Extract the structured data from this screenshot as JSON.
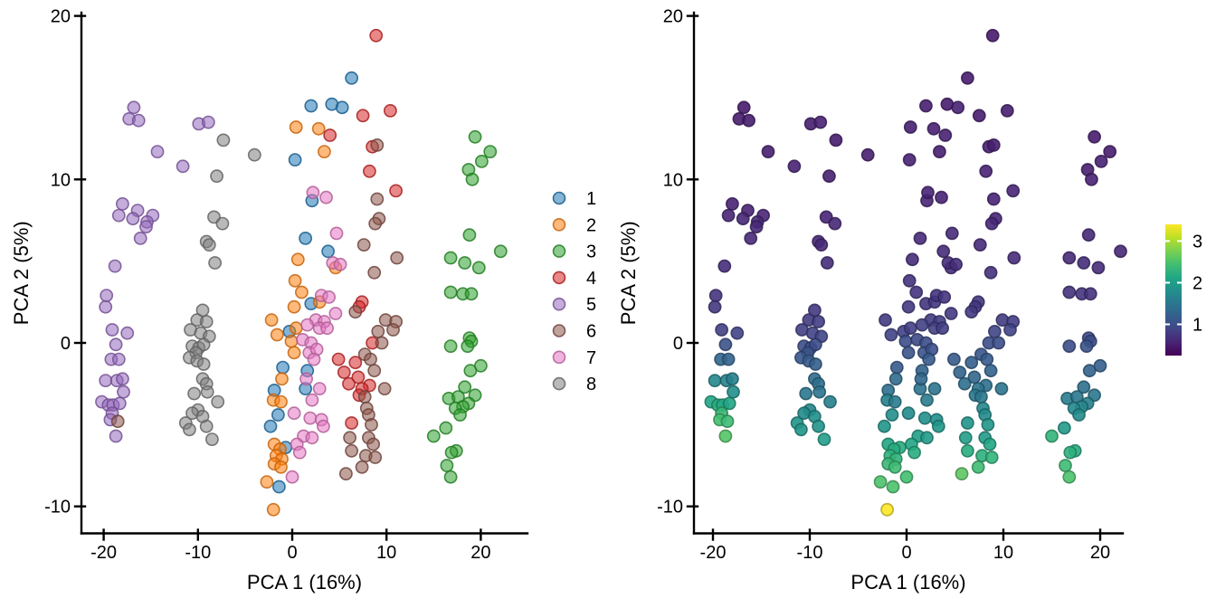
{
  "figure": {
    "background": "#ffffff"
  },
  "plots": [
    {
      "id": "left",
      "xlabel": "PCA 1 (16%)",
      "ylabel": "PCA 2 (5%)",
      "x_ticks": [
        -20,
        -10,
        0,
        10,
        20
      ],
      "y_ticks": [
        20,
        10,
        0,
        -10
      ],
      "color_by": "category"
    },
    {
      "id": "right",
      "xlabel": "PCA 1 (16%)",
      "ylabel": "PCA 2 (5%)",
      "x_ticks": [
        -20,
        -10,
        0,
        10,
        20
      ],
      "y_ticks": [
        20,
        10,
        0,
        -10
      ],
      "color_by": "value"
    }
  ],
  "legend": {
    "entries": [
      {
        "label": "1",
        "color": "#1f77b4"
      },
      {
        "label": "2",
        "color": "#ff7f0e"
      },
      {
        "label": "3",
        "color": "#2ca02c"
      },
      {
        "label": "4",
        "color": "#d62728"
      },
      {
        "label": "5",
        "color": "#9467bd"
      },
      {
        "label": "6",
        "color": "#8c564b"
      },
      {
        "label": "7",
        "color": "#e377c2"
      },
      {
        "label": "8",
        "color": "#7f7f7f"
      }
    ]
  },
  "colorbar": {
    "ticks": [
      1,
      2,
      3
    ],
    "vmin": 0.25,
    "vmax": 3.4
  },
  "chart_data": {
    "type": "scatter",
    "title": "",
    "xlabel": "PCA 1 (16%)",
    "ylabel": "PCA 2 (5%)",
    "xlim": [
      -22,
      23
    ],
    "ylim": [
      -11.6,
      20.4
    ],
    "grid": false,
    "columns": [
      "pca1",
      "pca2",
      "category",
      "value"
    ],
    "points": [
      [
        0.3,
        11.2,
        1,
        0.55
      ],
      [
        6.3,
        16.2,
        1,
        0.5
      ],
      [
        2.0,
        14.5,
        1,
        0.52
      ],
      [
        4.2,
        14.6,
        1,
        0.5
      ],
      [
        5.3,
        14.4,
        1,
        0.55
      ],
      [
        2.1,
        8.7,
        1,
        0.58
      ],
      [
        1.4,
        6.4,
        1,
        0.62
      ],
      [
        3.8,
        5.6,
        1,
        0.64
      ],
      [
        2.0,
        2.4,
        1,
        0.74
      ],
      [
        -0.3,
        0.7,
        1,
        0.86
      ],
      [
        -1.0,
        -1.5,
        1,
        1.15
      ],
      [
        1.6,
        -1.7,
        1,
        1.25
      ],
      [
        -1.9,
        -2.9,
        1,
        1.4
      ],
      [
        1.4,
        -2.8,
        1,
        1.45
      ],
      [
        -1.5,
        -4.4,
        1,
        1.8
      ],
      [
        -2.3,
        -5.1,
        1,
        1.9
      ],
      [
        -0.7,
        -6.4,
        1,
        2.2
      ],
      [
        -1.4,
        -8.8,
        1,
        2.5
      ],
      [
        0.4,
        13.2,
        2,
        0.52
      ],
      [
        2.8,
        13.1,
        2,
        0.54
      ],
      [
        3.4,
        11.7,
        2,
        0.52
      ],
      [
        4.6,
        4.6,
        2,
        0.66
      ],
      [
        0.6,
        5.1,
        2,
        0.64
      ],
      [
        0.3,
        3.8,
        2,
        0.7
      ],
      [
        1.0,
        3.1,
        2,
        0.72
      ],
      [
        2.9,
        2.5,
        2,
        0.75
      ],
      [
        0.2,
        2.2,
        2,
        0.78
      ],
      [
        0.4,
        0.9,
        2,
        0.84
      ],
      [
        -2.2,
        1.4,
        2,
        0.8
      ],
      [
        -1.6,
        0.5,
        2,
        0.88
      ],
      [
        -0.1,
        0.1,
        2,
        1.0
      ],
      [
        0.2,
        -0.6,
        2,
        1.05
      ],
      [
        -1.1,
        -2.2,
        2,
        1.35
      ],
      [
        -2.0,
        -3.5,
        2,
        1.6
      ],
      [
        -1.2,
        -3.6,
        2,
        1.55
      ],
      [
        -1.9,
        -6.2,
        2,
        2.1
      ],
      [
        -1.3,
        -6.5,
        2,
        2.2
      ],
      [
        -1.7,
        -6.9,
        2,
        2.25
      ],
      [
        -1.1,
        -7.1,
        2,
        2.3
      ],
      [
        -1.9,
        -7.4,
        2,
        2.35
      ],
      [
        -1.2,
        -7.6,
        2,
        2.4
      ],
      [
        -2.7,
        -8.5,
        2,
        2.5
      ],
      [
        -2.0,
        -10.2,
        2,
        3.4
      ],
      [
        19.4,
        12.6,
        3,
        0.5
      ],
      [
        21.0,
        11.7,
        3,
        0.5
      ],
      [
        20.1,
        11.1,
        3,
        0.54
      ],
      [
        18.7,
        10.6,
        3,
        0.52
      ],
      [
        19.1,
        10.0,
        3,
        0.55
      ],
      [
        18.8,
        6.6,
        3,
        0.6
      ],
      [
        16.8,
        5.2,
        3,
        0.62
      ],
      [
        22.1,
        5.6,
        3,
        0.6
      ],
      [
        18.3,
        4.9,
        3,
        0.66
      ],
      [
        19.8,
        4.6,
        3,
        0.64
      ],
      [
        16.8,
        3.1,
        3,
        0.7
      ],
      [
        18.1,
        3.0,
        3,
        0.72
      ],
      [
        19.0,
        3.0,
        3,
        0.7
      ],
      [
        16.8,
        -0.2,
        3,
        1.0
      ],
      [
        18.8,
        0.3,
        3,
        0.95
      ],
      [
        19.0,
        0.1,
        3,
        1.0
      ],
      [
        18.6,
        -0.2,
        3,
        1.05
      ],
      [
        20.0,
        -1.4,
        3,
        1.2
      ],
      [
        18.9,
        -1.7,
        3,
        1.25
      ],
      [
        18.3,
        -2.7,
        3,
        1.4
      ],
      [
        19.4,
        -3.2,
        3,
        1.5
      ],
      [
        16.6,
        -3.4,
        3,
        1.55
      ],
      [
        17.6,
        -3.3,
        3,
        1.5
      ],
      [
        18.7,
        -3.7,
        3,
        1.6
      ],
      [
        18.1,
        -3.9,
        3,
        1.65
      ],
      [
        17.3,
        -4.0,
        3,
        1.7
      ],
      [
        17.8,
        -4.4,
        3,
        1.75
      ],
      [
        16.3,
        -5.2,
        3,
        1.95
      ],
      [
        15.0,
        -5.7,
        3,
        2.3
      ],
      [
        17.4,
        -6.6,
        3,
        2.2
      ],
      [
        16.9,
        -6.7,
        3,
        2.25
      ],
      [
        16.4,
        -7.5,
        3,
        2.4
      ],
      [
        16.8,
        -8.2,
        3,
        2.5
      ],
      [
        8.9,
        18.8,
        4,
        0.48
      ],
      [
        10.4,
        14.2,
        4,
        0.52
      ],
      [
        7.5,
        13.9,
        4,
        0.5
      ],
      [
        8.5,
        12.0,
        4,
        0.52
      ],
      [
        4.0,
        12.7,
        4,
        0.54
      ],
      [
        8.2,
        10.5,
        4,
        0.56
      ],
      [
        11.0,
        9.3,
        4,
        0.58
      ],
      [
        7.4,
        2.5,
        4,
        0.74
      ],
      [
        7.1,
        2.2,
        4,
        0.76
      ],
      [
        8.5,
        0.0,
        4,
        1.0
      ],
      [
        5.5,
        -1.8,
        4,
        1.25
      ],
      [
        4.9,
        -1.0,
        4,
        1.15
      ],
      [
        6.7,
        -1.2,
        4,
        1.2
      ],
      [
        6.0,
        -2.5,
        4,
        1.4
      ],
      [
        7.0,
        -2.1,
        4,
        1.3
      ],
      [
        8.2,
        -2.6,
        4,
        1.4
      ],
      [
        7.4,
        -2.8,
        4,
        1.45
      ],
      [
        7.1,
        -3.2,
        4,
        1.5
      ],
      [
        6.3,
        -4.9,
        4,
        1.85
      ],
      [
        -16.8,
        14.4,
        5,
        0.48
      ],
      [
        -17.3,
        13.7,
        5,
        0.5
      ],
      [
        -16.3,
        13.6,
        5,
        0.5
      ],
      [
        -9.9,
        13.4,
        5,
        0.52
      ],
      [
        -8.9,
        13.5,
        5,
        0.54
      ],
      [
        -14.3,
        11.7,
        5,
        0.52
      ],
      [
        -11.6,
        10.8,
        5,
        0.55
      ],
      [
        -18.0,
        8.5,
        5,
        0.56
      ],
      [
        -18.4,
        7.8,
        5,
        0.58
      ],
      [
        -16.4,
        8.1,
        5,
        0.56
      ],
      [
        -16.9,
        7.6,
        5,
        0.6
      ],
      [
        -14.8,
        7.8,
        5,
        0.58
      ],
      [
        -15.4,
        7.4,
        5,
        0.6
      ],
      [
        -15.5,
        7.1,
        5,
        0.62
      ],
      [
        -16.1,
        6.4,
        5,
        0.62
      ],
      [
        -18.8,
        4.7,
        5,
        0.66
      ],
      [
        -19.7,
        2.9,
        5,
        0.72
      ],
      [
        -19.8,
        2.2,
        5,
        0.76
      ],
      [
        -19.1,
        0.8,
        5,
        0.85
      ],
      [
        -17.5,
        0.6,
        5,
        0.88
      ],
      [
        -18.7,
        -0.1,
        5,
        1.05
      ],
      [
        -19.2,
        -1.0,
        5,
        1.3
      ],
      [
        -18.4,
        -1.0,
        5,
        1.25
      ],
      [
        -19.8,
        -2.3,
        5,
        1.7
      ],
      [
        -18.6,
        -2.3,
        5,
        1.65
      ],
      [
        -18.0,
        -2.2,
        5,
        1.6
      ],
      [
        -17.9,
        -3.0,
        5,
        1.8
      ],
      [
        -20.2,
        -3.6,
        5,
        2.1
      ],
      [
        -19.5,
        -3.8,
        5,
        2.2
      ],
      [
        -19.0,
        -3.8,
        5,
        2.15
      ],
      [
        -18.3,
        -3.7,
        5,
        2.1
      ],
      [
        -19.1,
        -4.3,
        5,
        2.35
      ],
      [
        -19.3,
        -4.7,
        5,
        2.45
      ],
      [
        -18.7,
        -5.7,
        5,
        2.55
      ],
      [
        9.0,
        12.1,
        6,
        0.52
      ],
      [
        9.0,
        8.8,
        6,
        0.56
      ],
      [
        9.2,
        7.6,
        6,
        0.58
      ],
      [
        8.8,
        7.3,
        6,
        0.6
      ],
      [
        7.6,
        6.0,
        6,
        0.62
      ],
      [
        11.1,
        5.2,
        6,
        0.64
      ],
      [
        8.7,
        4.3,
        6,
        0.68
      ],
      [
        6.7,
        1.9,
        6,
        0.78
      ],
      [
        9.9,
        1.4,
        6,
        0.8
      ],
      [
        11.0,
        1.3,
        6,
        0.82
      ],
      [
        9.1,
        0.7,
        6,
        0.9
      ],
      [
        10.7,
        0.8,
        6,
        0.88
      ],
      [
        9.5,
        0.0,
        6,
        1.0
      ],
      [
        7.7,
        -0.7,
        6,
        1.1
      ],
      [
        8.3,
        -1.0,
        6,
        1.15
      ],
      [
        8.7,
        -1.7,
        6,
        1.25
      ],
      [
        9.8,
        -2.8,
        6,
        1.45
      ],
      [
        7.7,
        -3.3,
        6,
        1.5
      ],
      [
        7.9,
        -4.0,
        6,
        1.7
      ],
      [
        8.1,
        -4.4,
        6,
        1.75
      ],
      [
        8.4,
        -5.0,
        6,
        1.9
      ],
      [
        6.1,
        -5.8,
        6,
        2.0
      ],
      [
        8.1,
        -5.8,
        6,
        1.95
      ],
      [
        8.6,
        -6.2,
        6,
        2.1
      ],
      [
        6.3,
        -6.6,
        6,
        2.2
      ],
      [
        7.8,
        -6.9,
        6,
        2.25
      ],
      [
        8.8,
        -7.0,
        6,
        2.3
      ],
      [
        7.4,
        -7.6,
        6,
        2.4
      ],
      [
        5.7,
        -8.0,
        6,
        2.6
      ],
      [
        -18.5,
        -4.8,
        6,
        2.4
      ],
      [
        2.2,
        9.2,
        7,
        0.56
      ],
      [
        3.6,
        8.9,
        7,
        0.56
      ],
      [
        4.7,
        6.7,
        7,
        0.62
      ],
      [
        4.3,
        4.9,
        7,
        0.66
      ],
      [
        5.1,
        4.8,
        7,
        0.66
      ],
      [
        3.1,
        2.9,
        7,
        0.72
      ],
      [
        3.9,
        2.8,
        7,
        0.72
      ],
      [
        4.6,
        1.8,
        7,
        0.78
      ],
      [
        2.5,
        1.4,
        7,
        0.8
      ],
      [
        3.4,
        1.3,
        7,
        0.82
      ],
      [
        1.6,
        1.1,
        7,
        0.85
      ],
      [
        2.9,
        0.9,
        7,
        0.85
      ],
      [
        3.7,
        0.9,
        7,
        0.83
      ],
      [
        1.1,
        0.2,
        7,
        0.95
      ],
      [
        2.0,
        0.0,
        7,
        1.0
      ],
      [
        1.8,
        -0.6,
        7,
        1.05
      ],
      [
        2.6,
        -0.4,
        7,
        1.02
      ],
      [
        2.3,
        -1.0,
        7,
        1.15
      ],
      [
        1.5,
        -2.2,
        7,
        1.3
      ],
      [
        2.9,
        -2.8,
        7,
        1.45
      ],
      [
        2.1,
        -3.5,
        7,
        1.55
      ],
      [
        0.2,
        -4.3,
        7,
        1.75
      ],
      [
        1.9,
        -4.6,
        7,
        1.8
      ],
      [
        3.1,
        -4.7,
        7,
        1.8
      ],
      [
        3.3,
        -5.1,
        7,
        1.9
      ],
      [
        1.2,
        -5.7,
        7,
        2.0
      ],
      [
        2.1,
        -5.8,
        7,
        1.95
      ],
      [
        0.5,
        -6.2,
        7,
        2.1
      ],
      [
        0.8,
        -6.7,
        7,
        2.2
      ],
      [
        0.0,
        -8.2,
        7,
        2.45
      ],
      [
        -7.3,
        12.4,
        8,
        0.5
      ],
      [
        -4.0,
        11.5,
        8,
        0.52
      ],
      [
        -8.0,
        10.2,
        8,
        0.52
      ],
      [
        -8.3,
        7.7,
        8,
        0.57
      ],
      [
        -7.4,
        7.3,
        8,
        0.6
      ],
      [
        -9.1,
        6.2,
        8,
        0.6
      ],
      [
        -8.8,
        6.0,
        8,
        0.62
      ],
      [
        -8.2,
        4.9,
        8,
        0.65
      ],
      [
        -9.5,
        2.0,
        8,
        0.78
      ],
      [
        -10.1,
        1.4,
        8,
        0.8
      ],
      [
        -9.1,
        1.3,
        8,
        0.82
      ],
      [
        -10.8,
        0.8,
        8,
        0.85
      ],
      [
        -9.7,
        0.6,
        8,
        0.87
      ],
      [
        -8.8,
        0.4,
        8,
        0.9
      ],
      [
        -10.6,
        -0.2,
        8,
        1.0
      ],
      [
        -9.9,
        -0.3,
        8,
        1.02
      ],
      [
        -9.4,
        -0.1,
        8,
        0.98
      ],
      [
        -10.2,
        -0.6,
        8,
        1.05
      ],
      [
        -10.9,
        -0.9,
        8,
        1.1
      ],
      [
        -10.1,
        -1.1,
        8,
        1.15
      ],
      [
        -9.4,
        -1.3,
        8,
        1.2
      ],
      [
        -9.5,
        -2.2,
        8,
        1.35
      ],
      [
        -9.1,
        -2.5,
        8,
        1.4
      ],
      [
        -10.4,
        -3.1,
        8,
        1.5
      ],
      [
        -9.0,
        -3.0,
        8,
        1.45
      ],
      [
        -7.9,
        -3.6,
        8,
        1.6
      ],
      [
        -10.0,
        -4.1,
        8,
        1.7
      ],
      [
        -10.6,
        -4.3,
        8,
        1.75
      ],
      [
        -9.5,
        -4.5,
        8,
        1.8
      ],
      [
        -11.3,
        -4.9,
        8,
        1.85
      ],
      [
        -9.1,
        -5.1,
        8,
        1.85
      ],
      [
        -10.9,
        -5.3,
        8,
        1.9
      ],
      [
        -8.5,
        -5.9,
        8,
        2.0
      ]
    ]
  }
}
